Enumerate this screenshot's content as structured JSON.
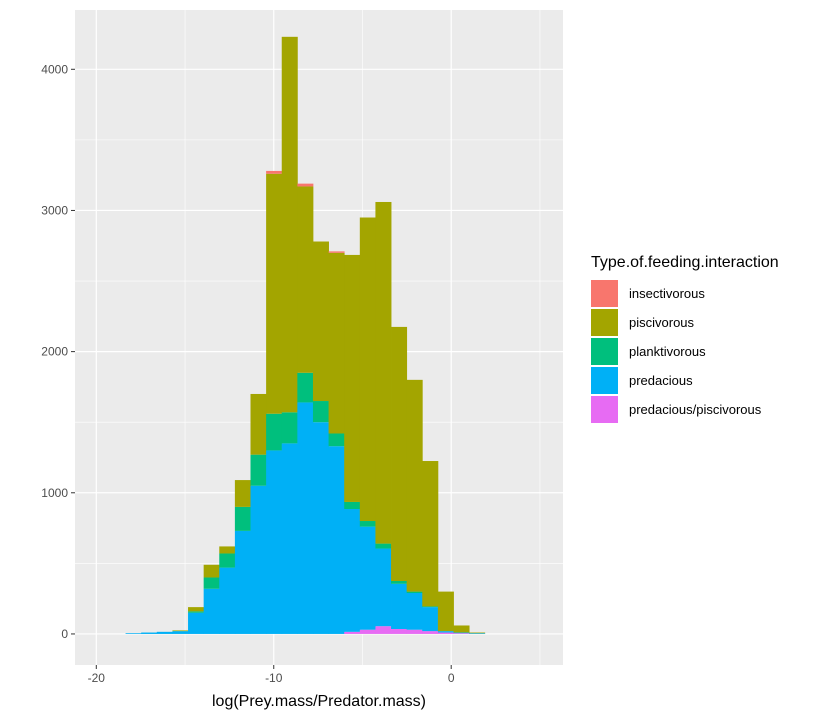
{
  "chart_data": {
    "type": "bar",
    "subtype": "stacked-histogram",
    "title": "",
    "xlabel": "log(Prey.mass/Predator.mass)",
    "ylabel": "",
    "xlim": [
      -21.2,
      6.3
    ],
    "ylim": [
      -220,
      4420
    ],
    "x_ticks": [
      -20,
      -10,
      0
    ],
    "y_ticks": [
      0,
      1000,
      2000,
      3000,
      4000
    ],
    "grid": true,
    "bin_width": 0.88,
    "legend": {
      "title": "Type.of.feeding.interaction",
      "placement": "right",
      "entries": [
        {
          "name": "insectivorous",
          "color": "#F8766D"
        },
        {
          "name": "piscivorous",
          "color": "#A3A500"
        },
        {
          "name": "planktivorous",
          "color": "#00BF7D"
        },
        {
          "name": "predacious",
          "color": "#00B0F6"
        },
        {
          "name": "predacious/piscivorous",
          "color": "#E76BF3"
        }
      ]
    },
    "bin_centers": [
      -17.91,
      -17.03,
      -16.15,
      -15.27,
      -14.39,
      -13.51,
      -12.63,
      -11.75,
      -10.87,
      -9.99,
      -9.11,
      -8.23,
      -7.35,
      -6.47,
      -5.59,
      -4.71,
      -3.83,
      -2.95,
      -2.07,
      -1.19,
      -0.31,
      0.57,
      1.45
    ],
    "series": [
      {
        "name": "predacious/piscivorous",
        "values": [
          0,
          0,
          0,
          0,
          0,
          0,
          0,
          0,
          0,
          0,
          0,
          0,
          0,
          0,
          15,
          30,
          55,
          35,
          30,
          20,
          10,
          5,
          0
        ]
      },
      {
        "name": "predacious",
        "values": [
          5,
          10,
          15,
          20,
          150,
          320,
          470,
          730,
          1050,
          1300,
          1350,
          1640,
          1500,
          1330,
          870,
          730,
          550,
          320,
          260,
          170,
          10,
          5,
          5
        ]
      },
      {
        "name": "planktivorous",
        "values": [
          0,
          0,
          0,
          0,
          10,
          80,
          100,
          170,
          220,
          260,
          220,
          210,
          150,
          90,
          50,
          40,
          35,
          20,
          10,
          5,
          0,
          0,
          0
        ]
      },
      {
        "name": "piscivorous",
        "values": [
          0,
          0,
          0,
          5,
          30,
          90,
          50,
          190,
          430,
          1700,
          2660,
          1320,
          1130,
          1280,
          1750,
          2150,
          2420,
          1800,
          1500,
          1030,
          280,
          50,
          5
        ]
      },
      {
        "name": "insectivorous",
        "values": [
          0,
          0,
          0,
          0,
          0,
          0,
          0,
          0,
          0,
          20,
          0,
          20,
          0,
          10,
          0,
          0,
          0,
          0,
          0,
          0,
          0,
          0,
          0
        ]
      }
    ]
  }
}
